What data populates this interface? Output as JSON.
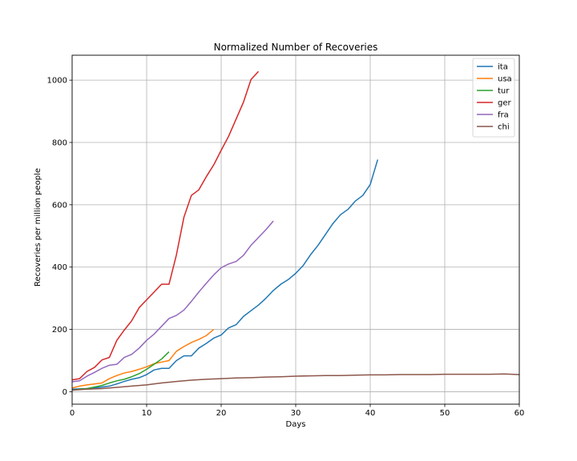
{
  "chart_data": {
    "type": "line",
    "title": "Normalized Number of Recoveries",
    "xlabel": "Days",
    "ylabel": "Recoveries per million people",
    "xlim": [
      0,
      60
    ],
    "ylim": [
      -40,
      1080
    ],
    "xticks": [
      0,
      10,
      20,
      30,
      40,
      50,
      60
    ],
    "yticks": [
      0,
      200,
      400,
      600,
      800,
      1000
    ],
    "grid": true,
    "legend_position": "top-right",
    "series": [
      {
        "name": "ita",
        "color": "#1f77b4",
        "x": [
          0,
          1,
          2,
          3,
          4,
          5,
          6,
          7,
          8,
          9,
          10,
          11,
          12,
          13,
          14,
          15,
          16,
          17,
          18,
          19,
          20,
          21,
          22,
          23,
          24,
          25,
          26,
          27,
          28,
          29,
          30,
          31,
          32,
          33,
          34,
          35,
          36,
          37,
          38,
          39,
          40,
          41
        ],
        "y": [
          8,
          9,
          10,
          12,
          15,
          18,
          25,
          33,
          40,
          45,
          55,
          70,
          75,
          75,
          100,
          115,
          115,
          140,
          155,
          172,
          182,
          205,
          215,
          242,
          260,
          278,
          300,
          325,
          345,
          360,
          380,
          405,
          440,
          470,
          505,
          540,
          568,
          585,
          612,
          630,
          665,
          745
        ]
      },
      {
        "name": "usa",
        "color": "#ff7f0e",
        "x": [
          0,
          1,
          2,
          3,
          4,
          5,
          6,
          7,
          8,
          9,
          10,
          11,
          12,
          13,
          14,
          15,
          16,
          17,
          18,
          19
        ],
        "y": [
          12,
          18,
          22,
          25,
          28,
          42,
          52,
          60,
          65,
          72,
          80,
          90,
          95,
          100,
          130,
          145,
          158,
          168,
          180,
          200
        ]
      },
      {
        "name": "tur",
        "color": "#2ca02c",
        "x": [
          0,
          1,
          2,
          3,
          4,
          5,
          6,
          7,
          8,
          9,
          10,
          11,
          12,
          13
        ],
        "y": [
          5,
          8,
          10,
          15,
          20,
          28,
          35,
          40,
          48,
          58,
          72,
          88,
          105,
          128
        ]
      },
      {
        "name": "ger",
        "color": "#d62728",
        "x": [
          0,
          1,
          2,
          3,
          4,
          5,
          6,
          7,
          8,
          9,
          10,
          11,
          12,
          13,
          14,
          15,
          16,
          17,
          18,
          19,
          20,
          21,
          22,
          23,
          24,
          25
        ],
        "y": [
          38,
          42,
          65,
          78,
          102,
          110,
          165,
          198,
          228,
          270,
          295,
          320,
          345,
          345,
          440,
          560,
          630,
          648,
          690,
          728,
          775,
          820,
          875,
          930,
          1002,
          1028
        ]
      },
      {
        "name": "fra",
        "color": "#9467bd",
        "x": [
          0,
          1,
          2,
          3,
          4,
          5,
          6,
          7,
          8,
          9,
          10,
          11,
          12,
          13,
          14,
          15,
          16,
          17,
          18,
          19,
          20,
          21,
          22,
          23,
          24,
          25,
          26,
          27
        ],
        "y": [
          32,
          35,
          50,
          62,
          75,
          85,
          88,
          110,
          120,
          140,
          165,
          185,
          210,
          235,
          245,
          262,
          290,
          320,
          348,
          375,
          398,
          410,
          418,
          438,
          470,
          495,
          520,
          548
        ]
      },
      {
        "name": "chi",
        "color": "#8c564b",
        "x": [
          0,
          2,
          4,
          6,
          8,
          10,
          12,
          14,
          16,
          18,
          20,
          22,
          24,
          26,
          28,
          30,
          32,
          34,
          36,
          38,
          40,
          42,
          44,
          46,
          48,
          50,
          52,
          54,
          56,
          58,
          60
        ],
        "y": [
          5,
          8,
          10,
          14,
          18,
          22,
          28,
          33,
          37,
          40,
          42,
          44,
          45,
          47,
          48,
          50,
          51,
          52,
          52,
          53,
          54,
          54,
          55,
          55,
          55,
          56,
          56,
          56,
          56,
          57,
          55
        ]
      }
    ]
  }
}
